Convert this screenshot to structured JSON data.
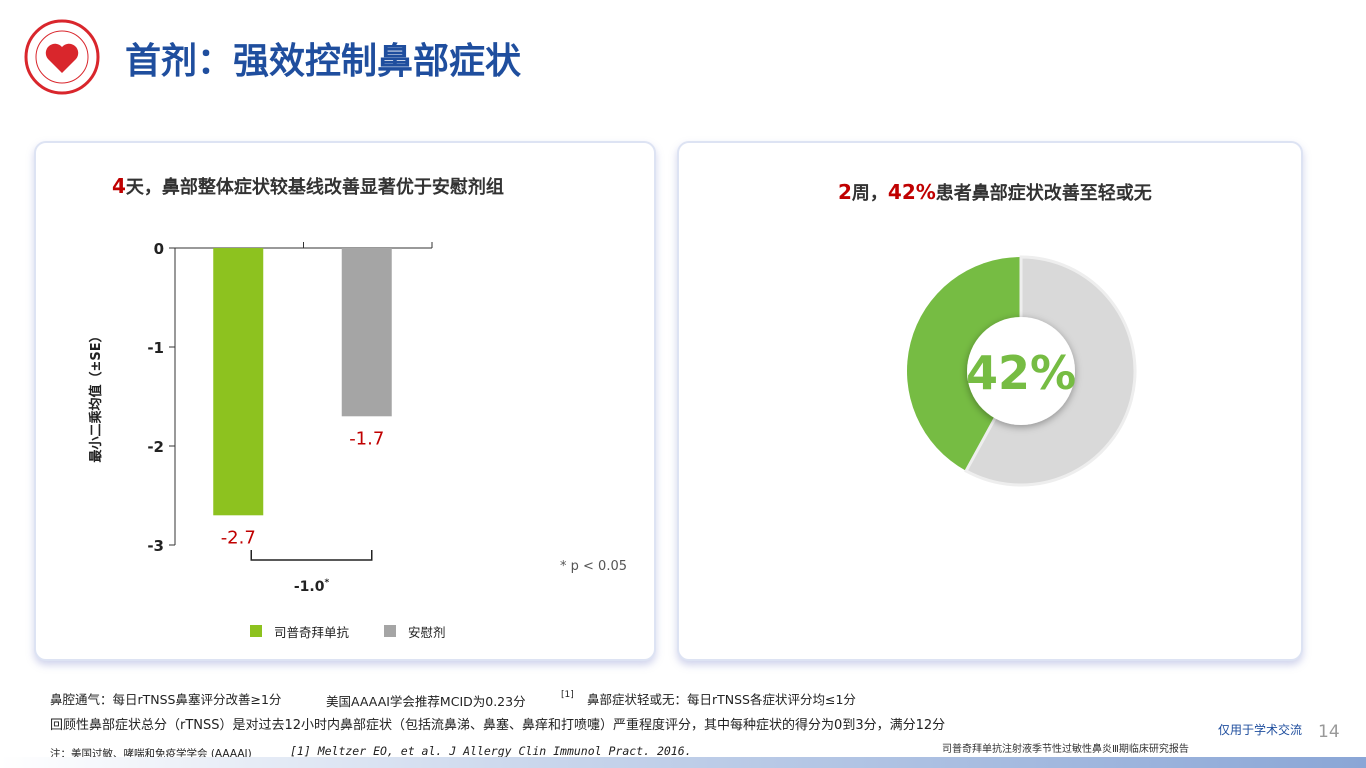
{
  "header": {
    "title": "首剂：强效控制鼻部症状"
  },
  "chart_data": [
    {
      "type": "bar",
      "title": [
        "4",
        "天，鼻部整体症状较基线改善显著优于安慰剂组"
      ],
      "categories": [
        null
      ],
      "series": [
        {
          "name": "司普奇拜单抗",
          "color": "#8dc21f",
          "values": [
            -2.7
          ]
        },
        {
          "name": "安慰剂",
          "color": "#a5a5a5",
          "values": [
            -1.7
          ]
        }
      ],
      "ylim": [
        -3,
        0
      ],
      "yticks": [
        0,
        -1,
        -2,
        -3
      ],
      "ylabel": "最小二乘均值（±SE）",
      "annotations": [
        {
          "text": "-1.0",
          "sup": "*"
        },
        "* p < 0.05"
      ]
    },
    {
      "type": "donut",
      "title": [
        "2",
        "周，",
        "42%",
        "患者鼻部症状改善至轻或无"
      ],
      "values": [
        42,
        58
      ],
      "colors": [
        "#76bc43",
        "#d9d9d9"
      ],
      "value_labels": [
        "42%",
        null
      ]
    }
  ],
  "notes": {
    "line1": [
      "鼻腔通气：每日rTNSS鼻塞评分改善≥1分",
      "美国AAAAI学会推荐MCID为0.23分",
      "[1]",
      "鼻部症状轻或无：每日rTNSS各症状评分均≤1分"
    ],
    "line2": "回顾性鼻部症状总分（rTNSS）是对过去12小时内鼻部症状（包括流鼻涕、鼻塞、鼻痒和打喷嚏）严重程度评分，其中每种症状的得分为0到3分，满分12分",
    "abbr": "注：美国过敏、哮喘和免疫学学会 (AAAAI)",
    "reference": "[1] Meltzer EO, et al. J Allergy Clin Immunol Pract. 2016."
  },
  "footer": {
    "disclaimer": "仅用于学术交流",
    "page": "14",
    "report": "司普奇拜单抗注射液季节性过敏性鼻炎Ⅲ期临床研究报告"
  }
}
